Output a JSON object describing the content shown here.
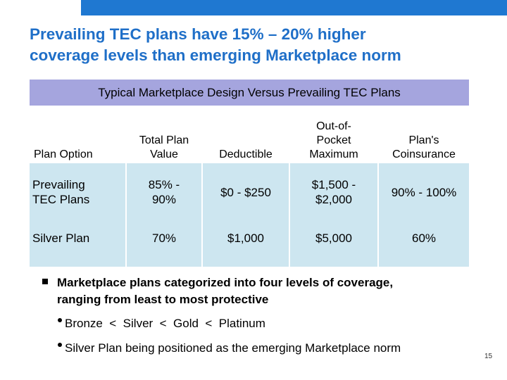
{
  "slide": {
    "title_line1": "Prevailing TEC plans have 15% – 20% higher",
    "title_line2": "coverage levels than emerging Marketplace norm",
    "page_number": "15"
  },
  "table": {
    "banner": "Typical Marketplace Design Versus Prevailing TEC Plans",
    "headers": [
      [
        "Plan Option"
      ],
      [
        "Total Plan",
        "Value"
      ],
      [
        "Deductible"
      ],
      [
        "Out-of-",
        "Pocket",
        "Maximum"
      ],
      [
        "Plan's",
        "Coinsurance"
      ]
    ],
    "rows": [
      {
        "plan_option": [
          "Prevailing",
          "TEC Plans"
        ],
        "total_plan_value": [
          "85% -",
          "90%"
        ],
        "deductible": [
          "$0 - $250"
        ],
        "oop_max": [
          "$1,500 -",
          "$2,000"
        ],
        "coinsurance": [
          "90% - 100%"
        ]
      },
      {
        "plan_option": [
          "Silver Plan"
        ],
        "total_plan_value": [
          "70%"
        ],
        "deductible": [
          "$1,000"
        ],
        "oop_max": [
          "$5,000"
        ],
        "coinsurance": [
          "60%"
        ]
      }
    ]
  },
  "bullets": {
    "main_line1": "Marketplace plans categorized into four levels of coverage,",
    "main_line2": "ranging from least to most protective",
    "sub1": "Bronze  <  Silver  <  Gold  <  Platinum",
    "sub2": "Silver Plan being positioned as the emerging Marketplace norm"
  },
  "colors": {
    "title": "#1f6fc8",
    "top_bar": "#1f78d1",
    "banner": "#a5a5de",
    "row_fill": "#cde6f0"
  }
}
